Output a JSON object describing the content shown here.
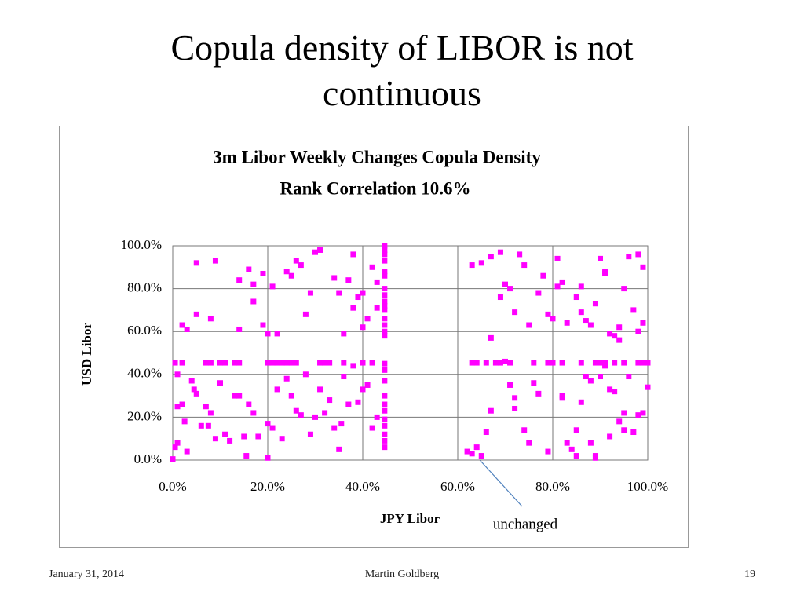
{
  "slide_title": "Copula density of LIBOR is not continuous",
  "footer": {
    "date": "January 31, 2014",
    "author": "Martin Goldberg",
    "page": "19"
  },
  "chart_data": {
    "type": "scatter",
    "title": "3m Libor Weekly Changes Copula Density",
    "subtitle": "Rank Correlation 10.6%",
    "x_label": "JPY Libor",
    "y_label": "USD Libor",
    "annotation": "unchanged",
    "color": "#ff00ff",
    "grid": true,
    "xlim": [
      0,
      100
    ],
    "ylim": [
      0,
      100
    ],
    "xticks": [
      {
        "value": 0,
        "label": "0.0%"
      },
      {
        "value": 20,
        "label": "20.0%"
      },
      {
        "value": 40,
        "label": "40.0%"
      },
      {
        "value": 60,
        "label": "60.0%"
      },
      {
        "value": 80,
        "label": "80.0%"
      },
      {
        "value": 100,
        "label": "100.0%"
      }
    ],
    "yticks": [
      {
        "value": 0,
        "label": "0.0%"
      },
      {
        "value": 20,
        "label": "20.0%"
      },
      {
        "value": 40,
        "label": "40.0%"
      },
      {
        "value": 60,
        "label": "60.0%"
      },
      {
        "value": 80,
        "label": "80.0%"
      },
      {
        "value": 100,
        "label": "100.0%"
      }
    ],
    "x": [
      44.6,
      44.6,
      44.6,
      44.6,
      44.6,
      44.6,
      44.6,
      44.6,
      44.6,
      44.6,
      44.6,
      44.6,
      44.6,
      44.6,
      44.6,
      44.6,
      44.6,
      44.6,
      44.6,
      44.6,
      44.6,
      44.6,
      44.6,
      44.6,
      44.6,
      44.6,
      0.5,
      2,
      7,
      8,
      10,
      11,
      13,
      14,
      20,
      21,
      22,
      23,
      24,
      25,
      26,
      31,
      32,
      33,
      36,
      40,
      42,
      63,
      64,
      66,
      68,
      69,
      71,
      76,
      79,
      80,
      82,
      86,
      89,
      90,
      91,
      93,
      95,
      98,
      99,
      100,
      0,
      0.5,
      1,
      1,
      2,
      2.5,
      3,
      4,
      4.5,
      5,
      6,
      7,
      7.5,
      8,
      9,
      10,
      11,
      12,
      13,
      14,
      15,
      15.5,
      16,
      17,
      18,
      20,
      20,
      21,
      22,
      23,
      24,
      25,
      26,
      27,
      28,
      29,
      30,
      31,
      32,
      33,
      34,
      35,
      35.5,
      36,
      37,
      38,
      39,
      40,
      41,
      42,
      43,
      1,
      2,
      3,
      5,
      5,
      8,
      9,
      14,
      14,
      16,
      17,
      17,
      19,
      19,
      20,
      21,
      22,
      24,
      25,
      26,
      27,
      28,
      29,
      30,
      31,
      34,
      35,
      36,
      37,
      38,
      38,
      39,
      40,
      40,
      41,
      42,
      43,
      43,
      62,
      63,
      64,
      65,
      66,
      67,
      70,
      71,
      72,
      72,
      74,
      75,
      76,
      77,
      79,
      82,
      82,
      83,
      84,
      85,
      85,
      86,
      87,
      88,
      89,
      89,
      90,
      91,
      92,
      93,
      94,
      95,
      95,
      96,
      97,
      98,
      99,
      100,
      88,
      92,
      63,
      65,
      67,
      67,
      69,
      69,
      70,
      71,
      72,
      73,
      74,
      75,
      77,
      78,
      79,
      80,
      81,
      81,
      82,
      83,
      85,
      86,
      86,
      87,
      88,
      89,
      90,
      91,
      91,
      92,
      93,
      94,
      94,
      95,
      96,
      97,
      98,
      98,
      99,
      99
    ],
    "values": [
      100,
      98,
      96,
      93,
      88,
      86,
      80,
      77,
      74,
      72,
      70,
      66,
      63,
      60,
      58,
      45,
      42,
      37,
      30,
      26,
      23,
      19,
      16,
      12,
      9,
      6,
      45.4,
      45.4,
      45.4,
      45.4,
      45.4,
      45.4,
      45.4,
      45.4,
      45.4,
      45.4,
      45.4,
      45.4,
      45.4,
      45.4,
      45.4,
      45.4,
      45.4,
      45.4,
      45.4,
      45.4,
      45.4,
      45.4,
      45.4,
      45.4,
      45.4,
      45.4,
      45.4,
      45.4,
      45.4,
      45.4,
      45.4,
      45.4,
      45.4,
      45.4,
      45.4,
      45.4,
      45.4,
      45.4,
      45.4,
      45.4,
      0.5,
      6,
      8,
      25,
      26,
      18,
      4,
      37,
      33,
      31,
      16,
      25,
      16,
      22,
      10,
      36,
      12,
      9,
      30,
      30,
      11,
      2,
      26,
      22,
      11,
      1,
      17,
      15,
      33,
      10,
      38,
      30,
      23,
      21,
      40,
      12,
      20,
      33,
      22,
      28,
      15,
      5,
      17,
      39,
      26,
      44,
      27,
      33,
      35,
      15,
      20,
      40,
      63,
      61,
      92,
      68,
      66,
      93,
      84,
      61,
      89,
      82,
      74,
      87,
      63,
      59,
      81,
      59,
      88,
      86,
      93,
      91,
      68,
      78,
      97,
      98,
      85,
      78,
      59,
      84,
      96,
      71,
      76,
      78,
      62,
      66,
      90,
      83,
      71,
      4,
      3,
      6,
      2,
      13,
      23,
      46,
      35,
      29,
      24,
      14,
      8,
      36,
      31,
      4,
      30,
      29,
      8,
      5,
      2,
      14,
      27,
      39,
      8,
      2,
      1,
      39,
      44,
      33,
      32,
      18,
      22,
      14,
      39,
      13,
      21,
      22,
      34,
      37,
      11,
      91,
      92,
      95,
      57,
      76,
      97,
      82,
      80,
      69,
      96,
      91,
      63,
      78,
      86,
      68,
      66,
      81,
      94,
      83,
      64,
      76,
      81,
      69,
      65,
      63,
      73,
      94,
      88,
      87,
      59,
      58,
      62,
      56,
      80,
      95,
      70,
      96,
      60,
      90,
      64
    ]
  }
}
